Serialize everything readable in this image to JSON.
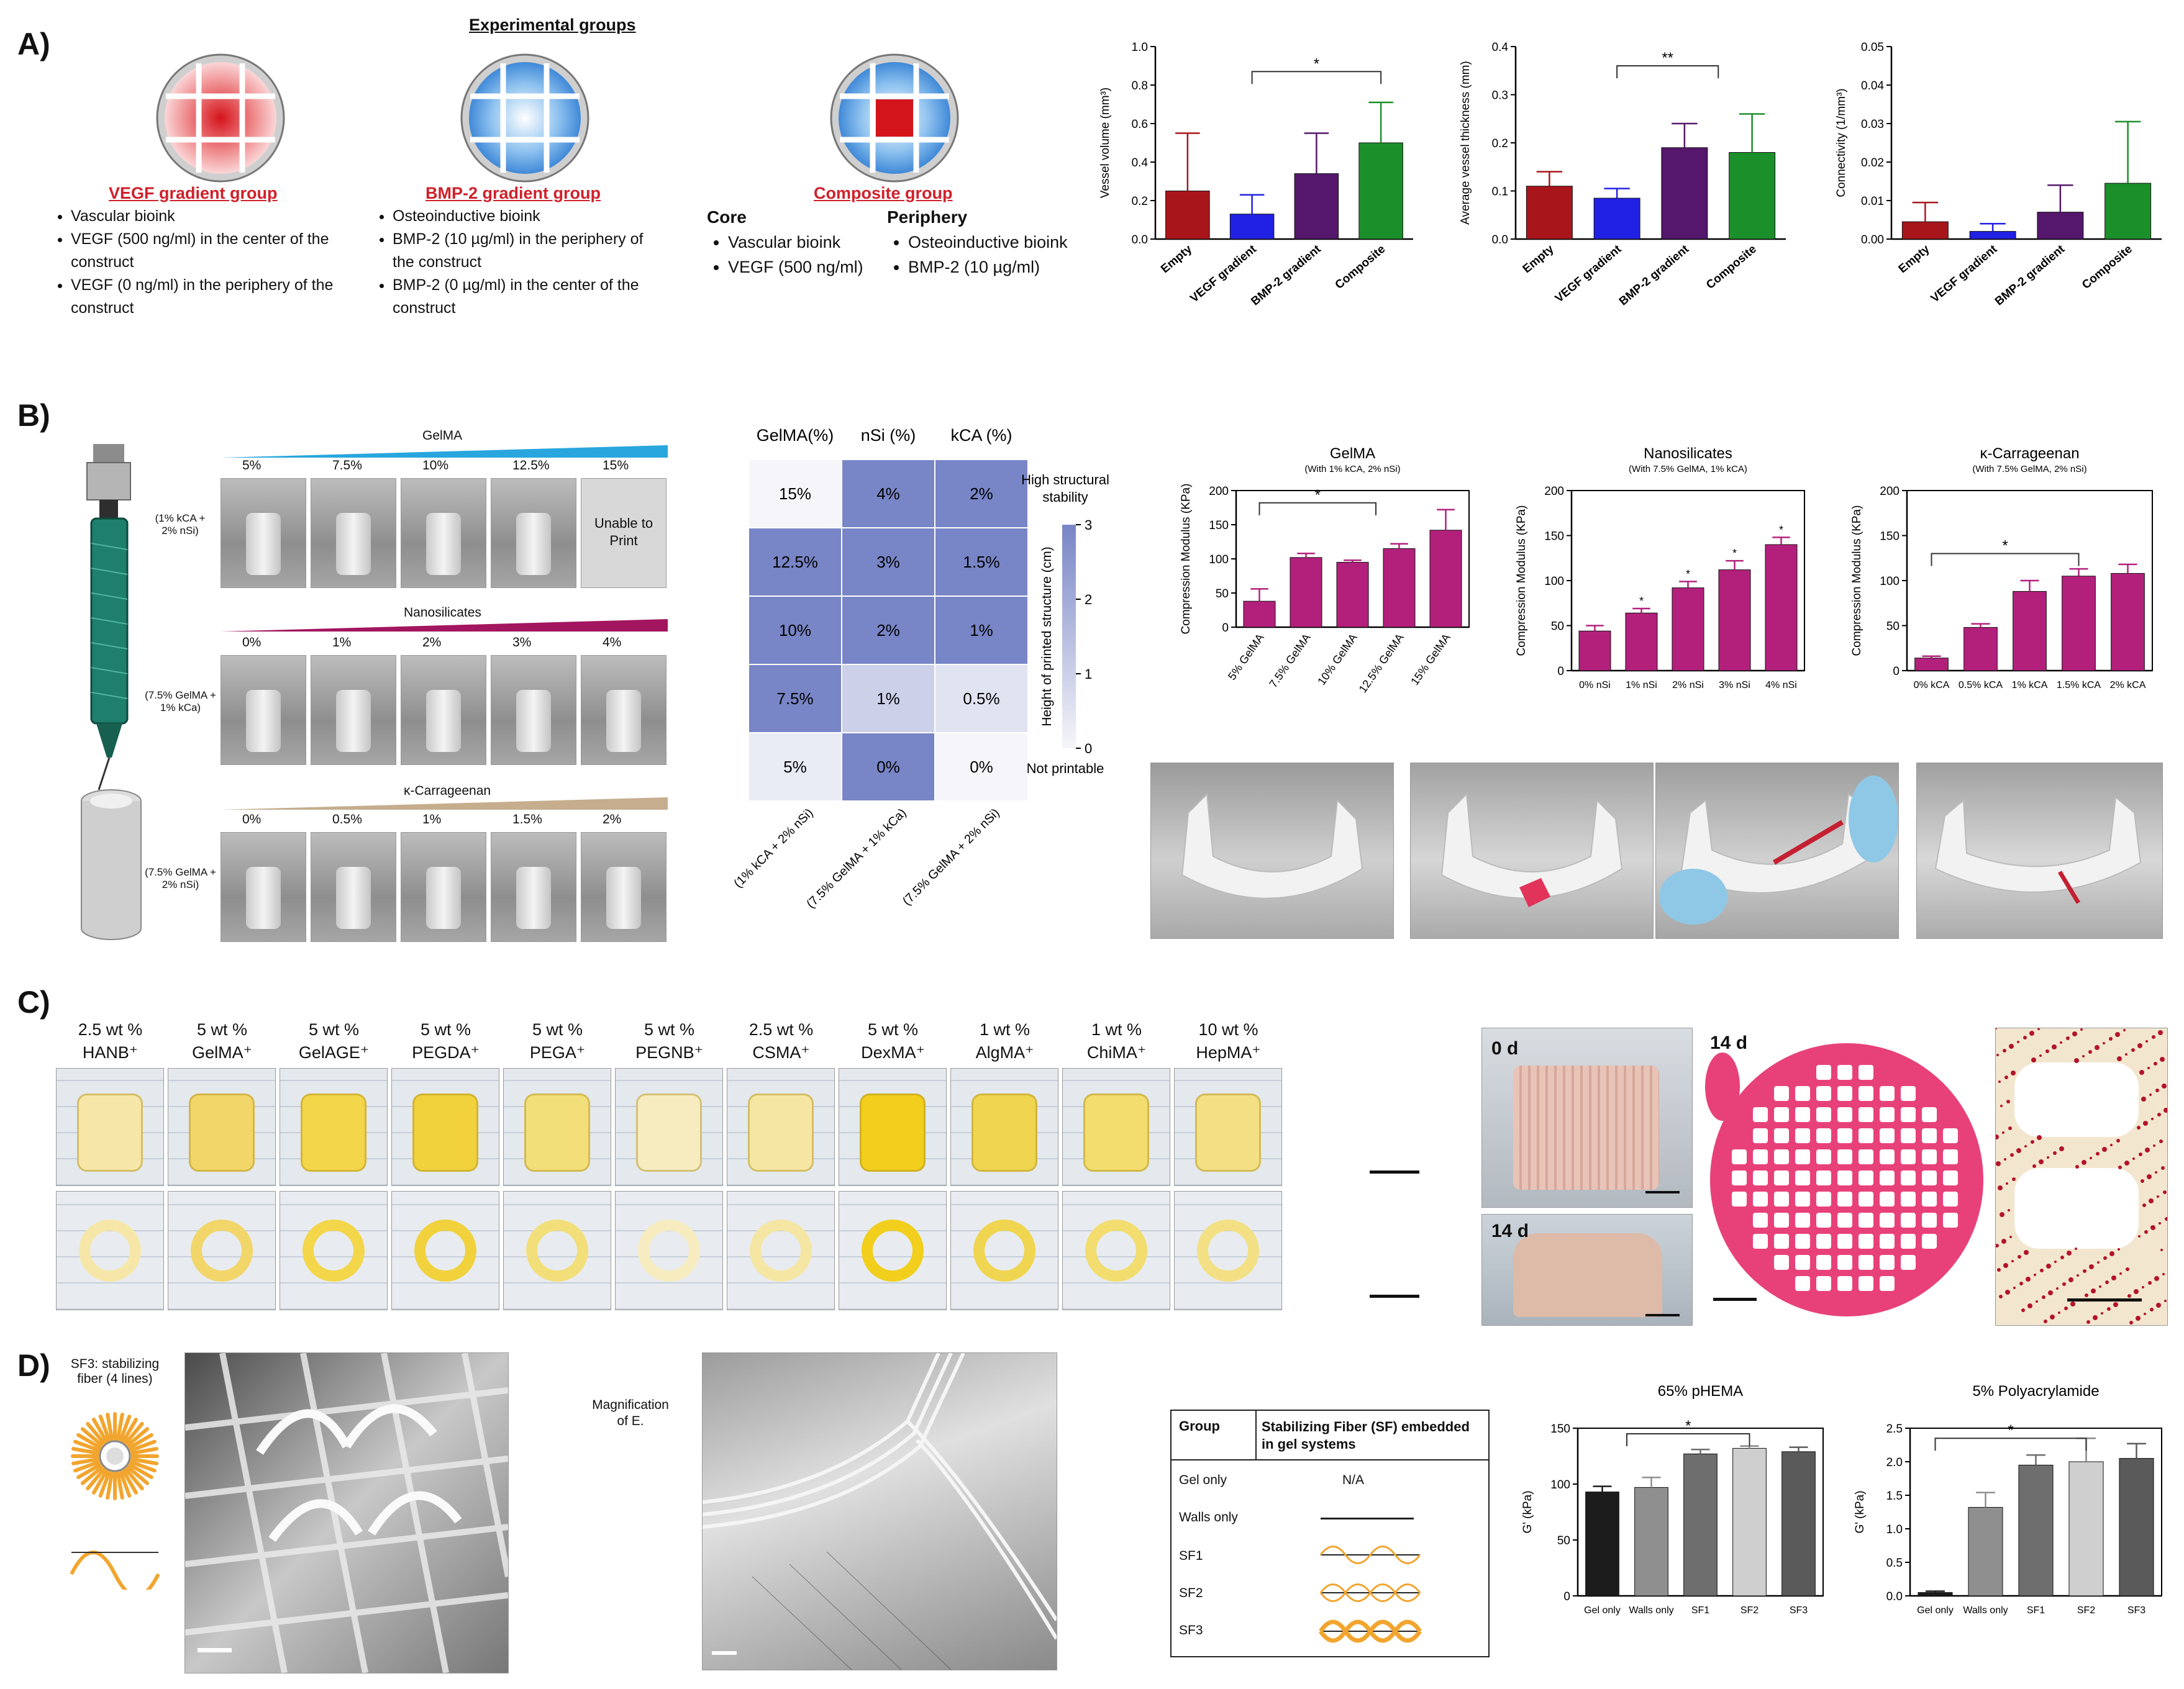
{
  "panels": {
    "a": "A)",
    "b": "B)",
    "c": "C)",
    "d": "D)"
  },
  "a": {
    "experimental_title": "Experimental groups",
    "groups": [
      {
        "name": "VEGF gradient group",
        "bullets": [
          "Vascular bioink",
          "VEGF (500 ng/ml) in the center of the construct",
          "VEGF (0 ng/ml) in the periphery of the construct"
        ]
      },
      {
        "name": "BMP-2 gradient group",
        "bullets": [
          "Osteoinductive bioink",
          "BMP-2 (10 µg/ml) in the periphery of the construct",
          "BMP-2 (0 µg/ml) in the center of the construct"
        ]
      },
      {
        "name": "Composite group",
        "core_title": "Core",
        "core_bullets": [
          "Vascular bioink",
          "VEGF (500 ng/ml)"
        ],
        "periphery_title": "Periphery",
        "periphery_bullets": [
          "Osteoinductive bioink",
          "BMP-2 (10 µg/ml)"
        ]
      }
    ]
  },
  "chart_data": [
    {
      "id": "a1",
      "type": "bar",
      "categories": [
        "Empty",
        "VEGF gradient",
        "BMP-2 gradient",
        "Composite"
      ],
      "values": [
        0.25,
        0.13,
        0.34,
        0.5
      ],
      "errors": [
        0.3,
        0.1,
        0.21,
        0.21
      ],
      "colors": [
        "#a8161b",
        "#2121e3",
        "#54176b",
        "#1b8f2a"
      ],
      "ylabel": "Vessel volume (mm³)",
      "ylim": [
        0,
        1.0
      ],
      "yticks": [
        "0.0",
        "0.2",
        "0.4",
        "0.6",
        "0.8",
        "1.0"
      ],
      "annotation": "*"
    },
    {
      "id": "a2",
      "type": "bar",
      "categories": [
        "Empty",
        "VEGF gradient",
        "BMP-2 gradient",
        "Composite"
      ],
      "values": [
        0.11,
        0.085,
        0.19,
        0.18
      ],
      "errors": [
        0.03,
        0.02,
        0.05,
        0.08
      ],
      "colors": [
        "#a8161b",
        "#2121e3",
        "#54176b",
        "#1b8f2a"
      ],
      "ylabel": "Average vessel thickness (mm)",
      "ylim": [
        0,
        0.4
      ],
      "yticks": [
        "0.0",
        "0.1",
        "0.2",
        "0.3",
        "0.4"
      ],
      "annotation": "**"
    },
    {
      "id": "a3",
      "type": "bar",
      "categories": [
        "Empty",
        "VEGF gradient",
        "BMP-2 gradient",
        "Composite"
      ],
      "values": [
        0.0045,
        0.002,
        0.007,
        0.0145
      ],
      "errors": [
        0.005,
        0.002,
        0.007,
        0.016
      ],
      "colors": [
        "#a8161b",
        "#2121e3",
        "#54176b",
        "#1b8f2a"
      ],
      "ylabel": "Connectivity (1/mm³)",
      "ylim": [
        0,
        0.05
      ],
      "yticks": [
        "0.00",
        "0.01",
        "0.02",
        "0.03",
        "0.04",
        "0.05"
      ],
      "annotation": ""
    },
    {
      "id": "b_heatmap",
      "type": "heatmap",
      "col_headers": [
        "GelMA(%)",
        "nSi (%)",
        "kCA (%)"
      ],
      "cells": [
        [
          "15%",
          "4%",
          "2%"
        ],
        [
          "12.5%",
          "3%",
          "1.5%"
        ],
        [
          "10%",
          "2%",
          "1%"
        ],
        [
          "7.5%",
          "1%",
          "0.5%"
        ],
        [
          "5%",
          "0%",
          "0%"
        ]
      ],
      "heights": [
        [
          0,
          3,
          3
        ],
        [
          3,
          3,
          3
        ],
        [
          3,
          3,
          3
        ],
        [
          3,
          1,
          0.5
        ],
        [
          0.3,
          3,
          0
        ]
      ],
      "x_labels": [
        "(1% kCA + 2% nSi)",
        "(7.5% GelMA + 1% kCa)",
        "(7.5% GelMA + 2% nSi)"
      ],
      "colorbar_label": "Height of printed structure (cm)",
      "colorbar_ticks": [
        "3",
        "2",
        "1",
        "0"
      ],
      "top_label": "High structural stability",
      "bottom_label": "Not printable"
    },
    {
      "id": "b1",
      "type": "bar",
      "title": "GelMA",
      "subtitle": "(With 1% kCA, 2% nSi)",
      "categories": [
        "5% GelMA",
        "7.5% GelMA",
        "10% GelMA",
        "12.5% GelMA",
        "15% GelMA"
      ],
      "values": [
        38,
        102,
        95,
        115,
        142
      ],
      "errors": [
        18,
        6,
        3,
        7,
        30
      ],
      "color": "#b3207c",
      "ylabel": "Compression Modulus (KPa)",
      "ylim": [
        0,
        200
      ],
      "yticks": [
        "0",
        "50",
        "100",
        "150",
        "200"
      ],
      "annotation": "*"
    },
    {
      "id": "b2",
      "type": "bar",
      "title": "Nanosilicates",
      "subtitle": "(With 7.5% GelMA, 1% kCA)",
      "categories": [
        "0% nSi",
        "1% nSi",
        "2% nSi",
        "3% nSi",
        "4% nSi"
      ],
      "values": [
        44,
        64,
        92,
        112,
        140
      ],
      "errors": [
        6,
        5,
        7,
        10,
        8
      ],
      "color": "#b3207c",
      "ylabel": "Compression Modulus (KPa)",
      "ylim": [
        0,
        200
      ],
      "yticks": [
        "0",
        "50",
        "100",
        "150",
        "200"
      ],
      "annotation": "*"
    },
    {
      "id": "b3",
      "type": "bar",
      "title": "κ-Carrageenan",
      "subtitle": "(With 7.5% GelMA, 2% nSi)",
      "categories": [
        "0% kCA",
        "0.5% kCA",
        "1% kCA",
        "1.5% kCA",
        "2% kCA"
      ],
      "values": [
        14,
        48,
        88,
        105,
        108
      ],
      "errors": [
        2,
        4,
        12,
        8,
        10
      ],
      "color": "#b3207c",
      "ylabel": "Compression Modulus (KPa)",
      "ylim": [
        0,
        200
      ],
      "yticks": [
        "0",
        "50",
        "100",
        "150",
        "200"
      ],
      "annotation": "*"
    },
    {
      "id": "d1",
      "type": "bar",
      "title": "65% pHEMA",
      "categories": [
        "Gel only",
        "Walls only",
        "SF1",
        "SF2",
        "SF3"
      ],
      "values": [
        93,
        97,
        127,
        132,
        129
      ],
      "errors": [
        5,
        9,
        4,
        2,
        4
      ],
      "colors": [
        "#1c1c1c",
        "#8f8f8f",
        "#6e6e6e",
        "#cfcfcf",
        "#5a5a5a"
      ],
      "ylabel": "G' (kPa)",
      "ylim": [
        0,
        150
      ],
      "yticks": [
        "0",
        "50",
        "100",
        "150"
      ],
      "annotation": "*"
    },
    {
      "id": "d2",
      "type": "bar",
      "title": "5% Polyacrylamide",
      "categories": [
        "Gel only",
        "Walls only",
        "SF1",
        "SF2",
        "SF3"
      ],
      "values": [
        0.05,
        1.32,
        1.95,
        2.0,
        2.05
      ],
      "errors": [
        0.02,
        0.22,
        0.15,
        0.35,
        0.22
      ],
      "colors": [
        "#1c1c1c",
        "#8f8f8f",
        "#6e6e6e",
        "#cfcfcf",
        "#5a5a5a"
      ],
      "ylabel": "G' (kPa)",
      "ylim": [
        0,
        2.5
      ],
      "yticks": [
        "0.0",
        "0.5",
        "1.0",
        "1.5",
        "2.0",
        "2.5"
      ],
      "annotation": "*"
    }
  ],
  "b": {
    "gelma_label": "GelMA",
    "gelma_levels": [
      "5%",
      "7.5%",
      "10%",
      "12.5%",
      "15%"
    ],
    "gelma_cond": "(1% kCA + 2% nSi)",
    "unable": "Unable to Print",
    "nsi_label": "Nanosilicates",
    "nsi_levels": [
      "0%",
      "1%",
      "2%",
      "3%",
      "4%"
    ],
    "nsi_cond": "(7.5% GelMA + 1% kCa)",
    "kca_label": "κ-Carrageenan",
    "kca_levels": [
      "0%",
      "0.5%",
      "1%",
      "1.5%",
      "2%"
    ],
    "kca_cond": "(7.5% GelMA + 2% nSi)"
  },
  "c": {
    "inks": [
      {
        "conc": "2.5 wt %",
        "name": "HANB⁺"
      },
      {
        "conc": "5 wt %",
        "name": "GelMA⁺"
      },
      {
        "conc": "5 wt %",
        "name": "GelAGE⁺"
      },
      {
        "conc": "5 wt %",
        "name": "PEGDA⁺"
      },
      {
        "conc": "5 wt %",
        "name": "PEGA⁺"
      },
      {
        "conc": "5 wt %",
        "name": "PEGNB⁺"
      },
      {
        "conc": "2.5 wt %",
        "name": "CSMA⁺"
      },
      {
        "conc": "5 wt %",
        "name": "DexMA⁺"
      },
      {
        "conc": "1 wt %",
        "name": "AlgMA⁺"
      },
      {
        "conc": "1 wt %",
        "name": "ChiMA⁺"
      },
      {
        "conc": "10 wt %",
        "name": "HepMA⁺"
      }
    ],
    "day0": "0 d",
    "day14a": "14 d",
    "day14b": "14 d"
  },
  "d": {
    "sf3_label": "SF3: stabilizing fiber (4 lines)",
    "magnification": "Magnification of E.",
    "table_head_group": "Group",
    "table_head_fiber": "Stabilizing Fiber (SF) embedded in gel systems",
    "rows": [
      "Gel only",
      "Walls only",
      "SF1",
      "SF2",
      "SF3"
    ],
    "na": "N/A"
  }
}
